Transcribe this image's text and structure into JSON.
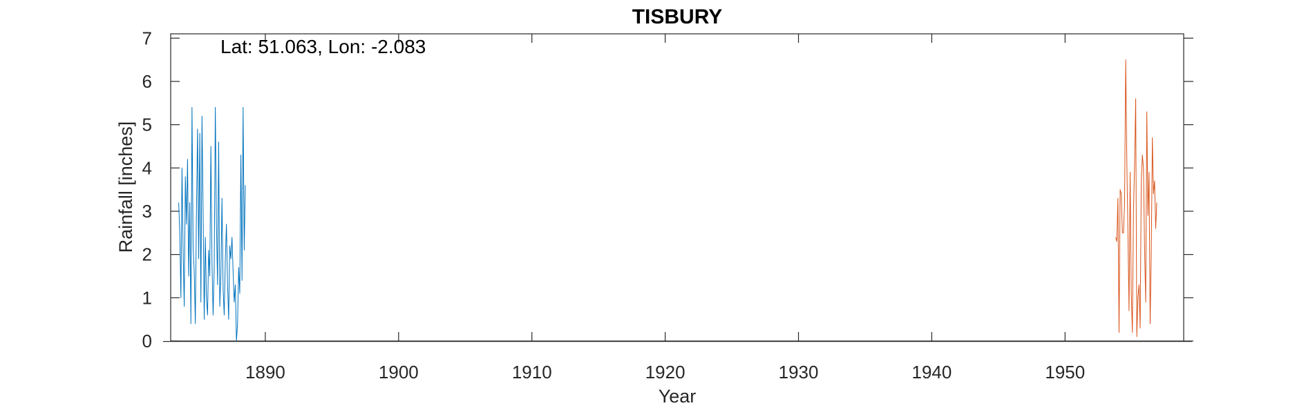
{
  "chart_data": {
    "type": "line",
    "title": "TISBURY",
    "xlabel": "Year",
    "ylabel": "Rainfall [inches]",
    "annotation": "Lat: 51.063, Lon: -2.083",
    "xlim": [
      1882.9,
      1958.9
    ],
    "ylim": [
      0,
      7.1
    ],
    "xticks": [
      1890,
      1900,
      1910,
      1920,
      1930,
      1940,
      1950
    ],
    "yticks": [
      0,
      1,
      2,
      3,
      4,
      5,
      6,
      7
    ],
    "grid": false,
    "legend": "none",
    "series": [
      {
        "color": "#0072BD",
        "x_start": 1883.5,
        "step": 0.0833333,
        "values": [
          3.2,
          2.5,
          1.0,
          4.0,
          2.1,
          0.8,
          3.8,
          2.7,
          4.2,
          1.5,
          3.2,
          0.4,
          5.4,
          2.2,
          1.6,
          0.4,
          3.0,
          4.9,
          1.9,
          4.8,
          0.9,
          5.2,
          3.0,
          0.5,
          2.4,
          1.0,
          0.6,
          2.1,
          1.5,
          4.5,
          1.8,
          0.6,
          1.7,
          5.4,
          2.7,
          1.3,
          4.6,
          0.8,
          1.5,
          3.3,
          1.2,
          0.6,
          1.9,
          2.7,
          1.3,
          0.5,
          2.2,
          1.9,
          2.4,
          1.6,
          0.9,
          1.3,
          0.0,
          0.4,
          1.7,
          1.1,
          4.3,
          1.4,
          5.4,
          2.1,
          3.6
        ]
      },
      {
        "color": "#D95319",
        "x_start": 1953.8,
        "step": 0.0833333,
        "values": [
          2.4,
          2.3,
          3.3,
          0.2,
          3.5,
          3.4,
          2.5,
          2.5,
          3.2,
          6.5,
          4.2,
          2.5,
          0.7,
          3.9,
          1.1,
          0.2,
          3.0,
          4.1,
          5.6,
          0.1,
          1.0,
          1.3,
          0.3,
          3.7,
          4.3,
          4.0,
          2.1,
          0.9,
          5.3,
          2.9,
          3.9,
          0.4,
          2.0,
          4.7,
          3.4,
          3.7,
          2.6,
          3.2
        ]
      }
    ]
  }
}
